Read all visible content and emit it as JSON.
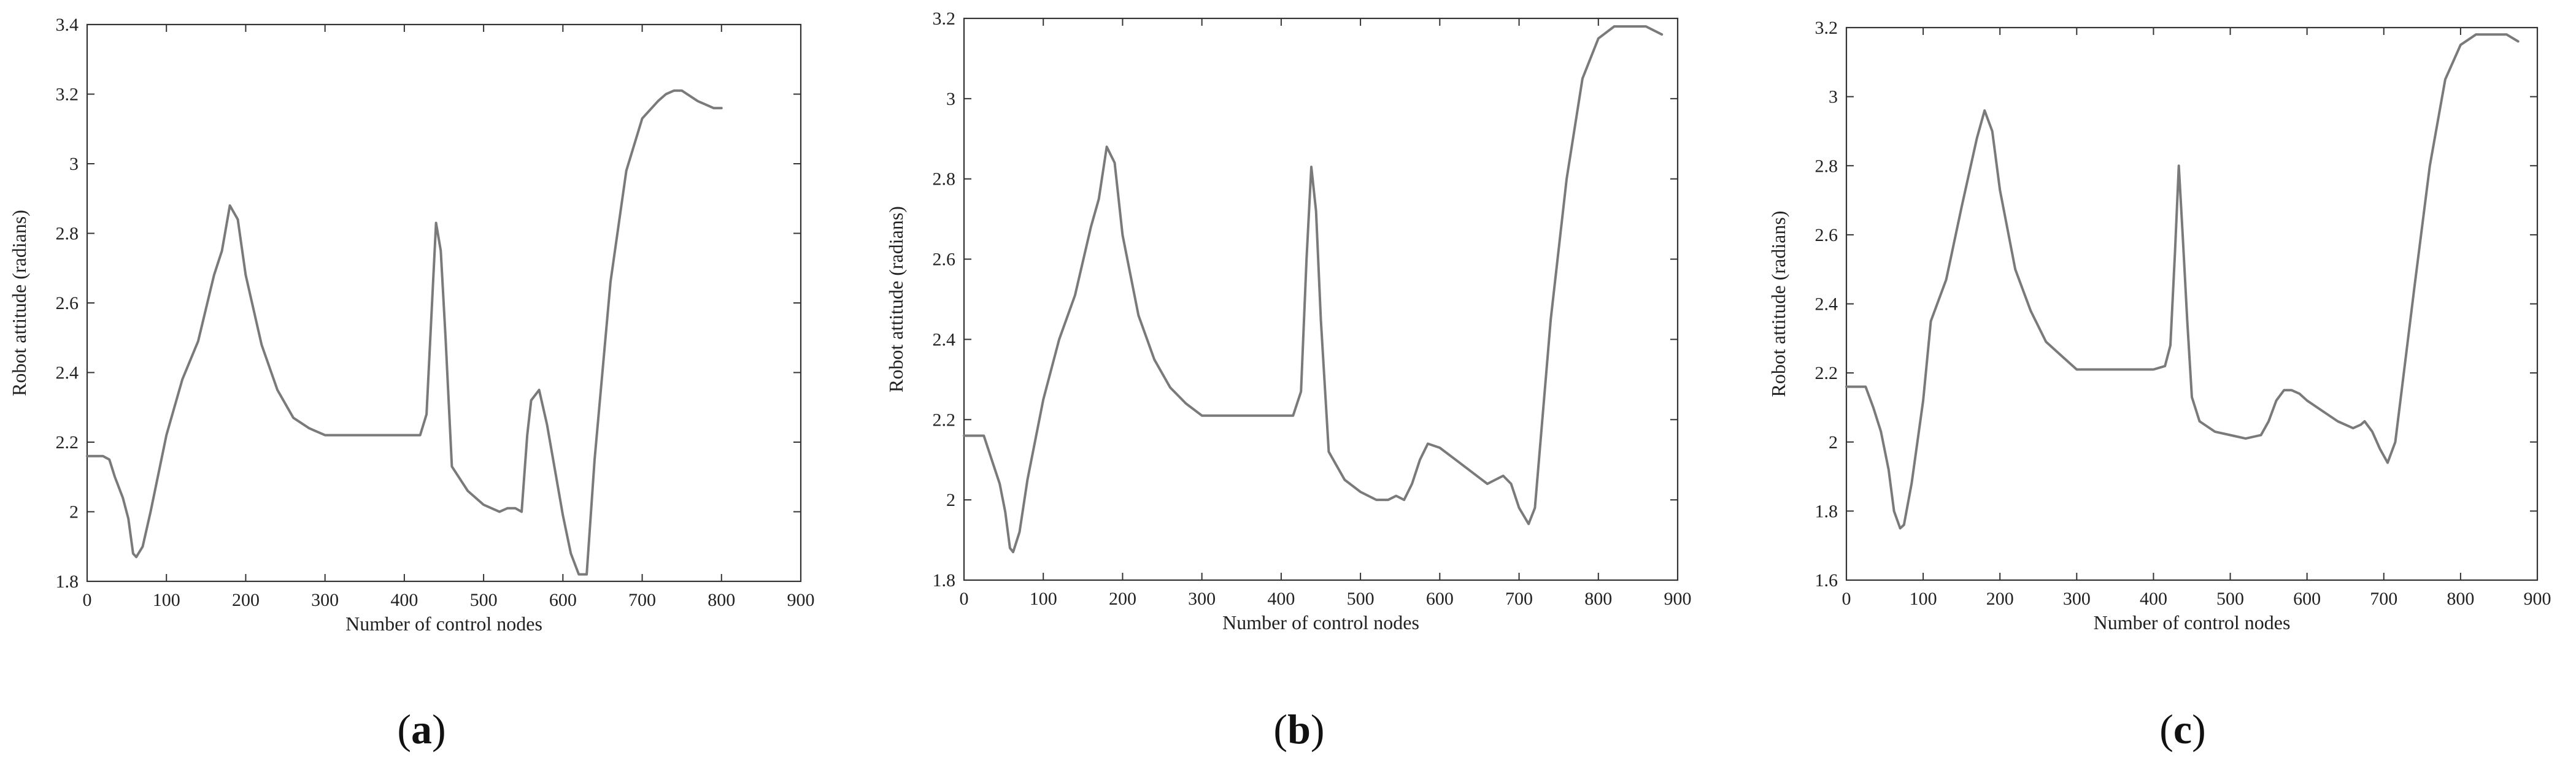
{
  "chart_data": [
    {
      "type": "line",
      "caption_letter": "a",
      "xlabel": "Number of control nodes",
      "ylabel": "Robot attitude (radians)",
      "xlim": [
        0,
        900
      ],
      "ylim": [
        1.8,
        3.4
      ],
      "xticks": [
        0,
        100,
        200,
        300,
        400,
        500,
        600,
        700,
        800,
        900
      ],
      "yticks": [
        1.8,
        2,
        2.2,
        2.4,
        2.6,
        2.8,
        3,
        3.2,
        3.4
      ],
      "ytick_labels": [
        "1.8",
        "2",
        "2.2",
        "2.4",
        "2.6",
        "2.8",
        "3",
        "3.2",
        "3.4"
      ],
      "grid": false,
      "line_color": "#7a7a7a",
      "x": [
        0,
        20,
        28,
        35,
        45,
        52,
        58,
        62,
        70,
        80,
        100,
        120,
        140,
        160,
        170,
        180,
        190,
        200,
        220,
        240,
        260,
        280,
        300,
        340,
        380,
        420,
        428,
        435,
        440,
        446,
        452,
        460,
        480,
        500,
        520,
        530,
        540,
        548,
        555,
        560,
        570,
        580,
        590,
        600,
        610,
        620,
        630,
        640,
        660,
        680,
        700,
        720,
        730,
        740,
        750,
        770,
        790,
        800
      ],
      "y": [
        2.16,
        2.16,
        2.15,
        2.1,
        2.04,
        1.98,
        1.88,
        1.87,
        1.9,
        2.0,
        2.22,
        2.38,
        2.49,
        2.68,
        2.75,
        2.88,
        2.84,
        2.68,
        2.48,
        2.35,
        2.27,
        2.24,
        2.22,
        2.22,
        2.22,
        2.22,
        2.28,
        2.6,
        2.83,
        2.75,
        2.5,
        2.13,
        2.06,
        2.02,
        2.0,
        2.01,
        2.01,
        2.0,
        2.22,
        2.32,
        2.35,
        2.25,
        2.12,
        1.99,
        1.88,
        1.82,
        1.82,
        2.15,
        2.66,
        2.98,
        3.13,
        3.18,
        3.2,
        3.21,
        3.21,
        3.18,
        3.16,
        3.16
      ]
    },
    {
      "type": "line",
      "caption_letter": "b",
      "xlabel": "Number of control nodes",
      "ylabel": "Robot attitude (radians)",
      "xlim": [
        0,
        900
      ],
      "ylim": [
        1.8,
        3.2
      ],
      "xticks": [
        0,
        100,
        200,
        300,
        400,
        500,
        600,
        700,
        800,
        900
      ],
      "yticks": [
        1.8,
        2,
        2.2,
        2.4,
        2.6,
        2.8,
        3,
        3.2
      ],
      "ytick_labels": [
        "1.8",
        "2",
        "2.2",
        "2.4",
        "2.6",
        "2.8",
        "3",
        "3.2"
      ],
      "grid": false,
      "line_color": "#7a7a7a",
      "x": [
        0,
        15,
        25,
        35,
        45,
        52,
        58,
        62,
        70,
        80,
        100,
        120,
        140,
        160,
        170,
        180,
        190,
        200,
        220,
        240,
        260,
        280,
        300,
        340,
        380,
        415,
        425,
        432,
        438,
        444,
        450,
        460,
        480,
        500,
        520,
        535,
        545,
        555,
        565,
        575,
        585,
        600,
        620,
        640,
        660,
        670,
        680,
        690,
        700,
        712,
        720,
        740,
        760,
        780,
        800,
        820,
        840,
        860,
        880
      ],
      "y": [
        2.16,
        2.16,
        2.16,
        2.1,
        2.04,
        1.97,
        1.88,
        1.87,
        1.92,
        2.05,
        2.25,
        2.4,
        2.51,
        2.68,
        2.75,
        2.88,
        2.84,
        2.66,
        2.46,
        2.35,
        2.28,
        2.24,
        2.21,
        2.21,
        2.21,
        2.21,
        2.27,
        2.6,
        2.83,
        2.72,
        2.45,
        2.12,
        2.05,
        2.02,
        2.0,
        2.0,
        2.01,
        2.0,
        2.04,
        2.1,
        2.14,
        2.13,
        2.1,
        2.07,
        2.04,
        2.05,
        2.06,
        2.04,
        1.98,
        1.94,
        1.98,
        2.45,
        2.8,
        3.05,
        3.15,
        3.18,
        3.18,
        3.18,
        3.16
      ]
    },
    {
      "type": "line",
      "caption_letter": "c",
      "xlabel": "Number of control nodes",
      "ylabel": "Robot attitude (radians)",
      "xlim": [
        0,
        900
      ],
      "ylim": [
        1.6,
        3.2
      ],
      "xticks": [
        0,
        100,
        200,
        300,
        400,
        500,
        600,
        700,
        800,
        900
      ],
      "yticks": [
        1.6,
        1.8,
        2,
        2.2,
        2.4,
        2.6,
        2.8,
        3,
        3.2
      ],
      "ytick_labels": [
        "1.6",
        "1.8",
        "2",
        "2.2",
        "2.4",
        "2.6",
        "2.8",
        "3",
        "3.2"
      ],
      "grid": false,
      "line_color": "#7a7a7a",
      "x": [
        0,
        15,
        25,
        35,
        45,
        55,
        62,
        70,
        75,
        85,
        100,
        110,
        130,
        150,
        170,
        180,
        190,
        200,
        220,
        240,
        260,
        280,
        300,
        320,
        360,
        400,
        415,
        422,
        428,
        433,
        438,
        444,
        450,
        460,
        480,
        500,
        520,
        540,
        550,
        560,
        570,
        580,
        590,
        600,
        620,
        640,
        660,
        670,
        675,
        685,
        695,
        705,
        715,
        740,
        760,
        780,
        800,
        820,
        840,
        860,
        875
      ],
      "y": [
        2.16,
        2.16,
        2.16,
        2.1,
        2.03,
        1.92,
        1.8,
        1.75,
        1.76,
        1.88,
        2.12,
        2.35,
        2.47,
        2.68,
        2.88,
        2.96,
        2.9,
        2.73,
        2.5,
        2.38,
        2.29,
        2.25,
        2.21,
        2.21,
        2.21,
        2.21,
        2.22,
        2.28,
        2.55,
        2.8,
        2.6,
        2.35,
        2.13,
        2.06,
        2.03,
        2.02,
        2.01,
        2.02,
        2.06,
        2.12,
        2.15,
        2.15,
        2.14,
        2.12,
        2.09,
        2.06,
        2.04,
        2.05,
        2.06,
        2.03,
        1.98,
        1.94,
        2.0,
        2.45,
        2.8,
        3.05,
        3.15,
        3.18,
        3.18,
        3.18,
        3.16
      ]
    }
  ],
  "captions": [
    {
      "open": "(",
      "letter": "a",
      "close": ")"
    },
    {
      "open": "(",
      "letter": "b",
      "close": ")"
    },
    {
      "open": "(",
      "letter": "c",
      "close": ")"
    }
  ]
}
